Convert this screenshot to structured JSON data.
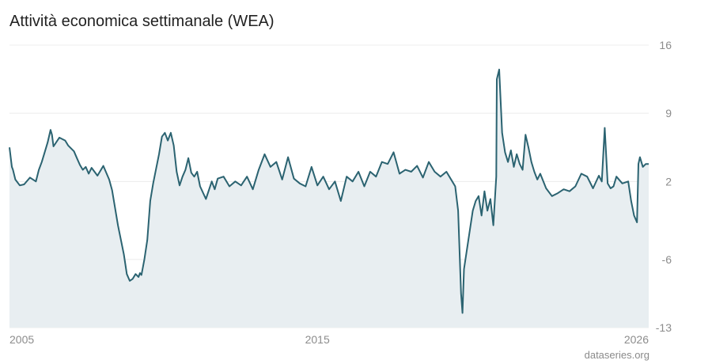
{
  "title": "Attività economica settimanale (WEA)",
  "source": "dataseries.org",
  "colors": {
    "line": "#2b6371",
    "fill": "#e8eef1",
    "grid": "#ececec",
    "text": "#8c8c8c"
  },
  "chart_data": {
    "type": "area",
    "title": "Attività economica settimanale (WEA)",
    "xlabel": "",
    "ylabel": "",
    "xlim": [
      2004.5,
      2026.3
    ],
    "ylim": [
      -13,
      16
    ],
    "y_ticks": [
      16,
      9,
      2,
      -6,
      -13
    ],
    "y_tick_labels": [
      "16",
      "9",
      "2",
      "-6",
      "-13"
    ],
    "x_ticks": [
      2005,
      2015,
      2026
    ],
    "x_tick_labels": [
      "2005",
      "2015",
      "2026"
    ],
    "y_axis_position": "right",
    "grid": true,
    "series": [
      {
        "x": [
          2004.5,
          2004.58,
          2004.62,
          2004.7,
          2004.85,
          2005.0,
          2005.2,
          2005.4,
          2005.5,
          2005.6,
          2005.7,
          2005.8,
          2005.9,
          2005.95,
          2006.0,
          2006.2,
          2006.4,
          2006.5,
          2006.7,
          2006.8,
          2006.9,
          2007.0,
          2007.1,
          2007.2,
          2007.3,
          2007.5,
          2007.7,
          2007.9,
          2008.0,
          2008.2,
          2008.4,
          2008.5,
          2008.6,
          2008.7,
          2008.8,
          2008.9,
          2008.95,
          2009.0,
          2009.1,
          2009.2,
          2009.3,
          2009.4,
          2009.5,
          2009.6,
          2009.7,
          2009.8,
          2009.9,
          2010.0,
          2010.1,
          2010.2,
          2010.3,
          2010.4,
          2010.5,
          2010.6,
          2010.7,
          2010.8,
          2010.9,
          2011.0,
          2011.2,
          2011.4,
          2011.5,
          2011.6,
          2011.8,
          2012.0,
          2012.2,
          2012.4,
          2012.6,
          2012.8,
          2013.0,
          2013.2,
          2013.4,
          2013.6,
          2013.8,
          2014.0,
          2014.2,
          2014.4,
          2014.6,
          2014.8,
          2015.0,
          2015.2,
          2015.4,
          2015.6,
          2015.8,
          2016.0,
          2016.2,
          2016.4,
          2016.6,
          2016.8,
          2017.0,
          2017.2,
          2017.4,
          2017.6,
          2017.8,
          2018.0,
          2018.2,
          2018.4,
          2018.6,
          2018.8,
          2019.0,
          2019.2,
          2019.4,
          2019.6,
          2019.7,
          2019.8,
          2019.9,
          2019.95,
          2020.0,
          2020.1,
          2020.2,
          2020.3,
          2020.4,
          2020.5,
          2020.6,
          2020.7,
          2020.8,
          2020.9,
          2021.0,
          2021.1,
          2021.12,
          2021.2,
          2021.3,
          2021.4,
          2021.5,
          2021.6,
          2021.7,
          2021.8,
          2021.9,
          2022.0,
          2022.1,
          2022.2,
          2022.3,
          2022.4,
          2022.5,
          2022.6,
          2022.8,
          2023.0,
          2023.2,
          2023.4,
          2023.6,
          2023.8,
          2024.0,
          2024.2,
          2024.4,
          2024.6,
          2024.7,
          2024.8,
          2024.9,
          2025.0,
          2025.1,
          2025.2,
          2025.4,
          2025.6,
          2025.7,
          2025.8,
          2025.9,
          2025.95,
          2026.0,
          2026.1,
          2026.2,
          2026.3
        ],
        "values": [
          5.5,
          3.5,
          3.2,
          2.2,
          1.6,
          1.7,
          2.4,
          2.0,
          3.2,
          4.0,
          5.0,
          6.0,
          7.3,
          6.8,
          5.6,
          6.5,
          6.2,
          5.7,
          5.1,
          4.4,
          3.7,
          3.2,
          3.5,
          2.8,
          3.4,
          2.6,
          3.6,
          2.2,
          1.1,
          -2.5,
          -5.5,
          -7.5,
          -8.2,
          -8.0,
          -7.5,
          -7.8,
          -7.4,
          -7.6,
          -6.0,
          -4.0,
          0.0,
          1.8,
          3.3,
          4.8,
          6.6,
          7.0,
          6.2,
          7.0,
          5.7,
          3.0,
          1.6,
          2.5,
          3.2,
          4.4,
          2.9,
          2.5,
          3.0,
          1.5,
          0.2,
          2.0,
          1.2,
          2.3,
          2.5,
          1.5,
          2.0,
          1.6,
          2.5,
          1.2,
          3.2,
          4.8,
          3.5,
          4.0,
          2.2,
          4.5,
          2.3,
          1.8,
          1.5,
          3.5,
          1.6,
          2.5,
          1.2,
          2.0,
          0.0,
          2.5,
          2.0,
          3.0,
          1.5,
          3.0,
          2.5,
          4.0,
          3.8,
          5.0,
          2.8,
          3.2,
          3.0,
          3.6,
          2.4,
          4.0,
          3.0,
          2.5,
          3.0,
          2.0,
          1.5,
          -1.0,
          -9.5,
          -11.5,
          -7.0,
          -5.0,
          -3.0,
          -1.0,
          0.0,
          0.5,
          -1.5,
          1.0,
          -1.0,
          0.2,
          -2.5,
          2.5,
          12.5,
          13.5,
          7.0,
          5.0,
          4.0,
          5.2,
          3.5,
          4.8,
          3.8,
          3.2,
          6.8,
          5.5,
          4.0,
          3.0,
          2.2,
          2.8,
          1.3,
          0.5,
          0.8,
          1.2,
          1.0,
          1.5,
          2.8,
          2.5,
          1.3,
          2.6,
          2.0,
          7.5,
          1.8,
          1.3,
          1.5,
          2.5,
          1.8,
          2.0,
          0.0,
          -1.5,
          -2.2,
          3.8,
          4.5,
          3.5,
          3.8,
          3.8
        ]
      }
    ]
  }
}
